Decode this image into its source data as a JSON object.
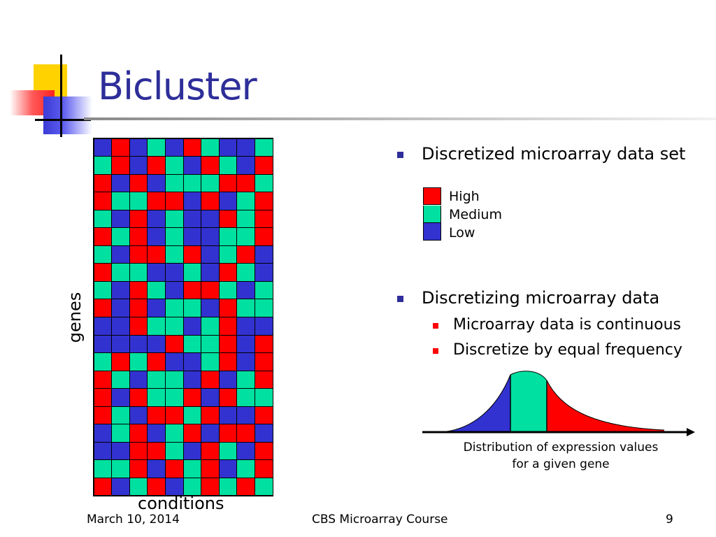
{
  "slide": {
    "title": "Bicluster",
    "colors": {
      "high": "#ff0000",
      "medium": "#00e0a0",
      "low": "#3232d0",
      "title": "#2e2e9a"
    },
    "matrix": {
      "rows": [
        "LHLMLHMLLM",
        "MHLHMLHMLH",
        "HLHLMMMHHM",
        "HMMHHLHLMH",
        "MLHLMLLHMH",
        "HMHLMLLMMH",
        "MLHHMHLMHL",
        "HMMLLMLHML",
        "MLHMLHHMLM",
        "HLHLMMLHMM",
        "LLHMMLMHLL",
        "LLLLHMMHLH",
        "MHMHLLMHLH",
        "HMLMMLHLMH",
        "HLHMMHLHMM",
        "HMLHHMHLLH",
        "LMHLMHLHHL",
        "LLHHMLHMLH",
        "MMHLHMHLMH",
        "HLMHLMHMHM"
      ],
      "y_label": "genes",
      "x_label": "conditions"
    },
    "bullets": [
      {
        "text": "Discretized microarray data set"
      },
      {
        "text": "Discretizing microarray data"
      }
    ],
    "sub_bullets": [
      {
        "text": "Microarray data is continuous"
      },
      {
        "text": "Discretize by equal frequency"
      }
    ],
    "legend": [
      {
        "label": "High",
        "color": "#ff0000"
      },
      {
        "label": "Medium",
        "color": "#00e0a0"
      },
      {
        "label": "Low",
        "color": "#3232d0"
      }
    ],
    "distribution": {
      "caption_line1": "Distribution of expression values",
      "caption_line2": "for a given gene"
    },
    "footer": {
      "date": "March 10, 2014",
      "course": "CBS Microarray Course",
      "page_number": "9"
    }
  }
}
